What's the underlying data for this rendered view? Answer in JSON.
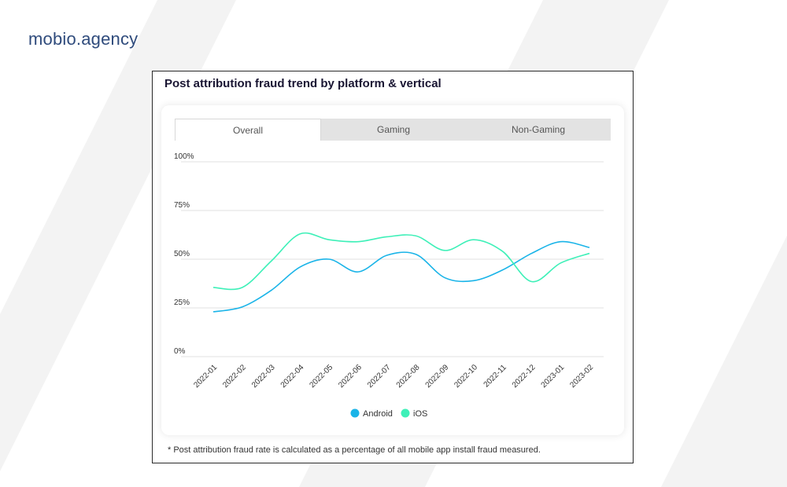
{
  "brand": {
    "name": "mobio.agency"
  },
  "card": {
    "title": "Post attribution fraud trend by platform & vertical",
    "footnote": "* Post attribution fraud rate is calculated as a percentage of all mobile app install fraud measured."
  },
  "tabs": [
    {
      "label": "Overall",
      "active": true
    },
    {
      "label": "Gaming",
      "active": false
    },
    {
      "label": "Non-Gaming",
      "active": false
    }
  ],
  "colors": {
    "brand": "#2f4b7c",
    "android": "#1ab4e8",
    "ios": "#3ef0b8",
    "gridline": "#e0e0e0",
    "stripe": "#f2f2f2"
  },
  "chart_data": {
    "type": "line",
    "title": "Post attribution fraud trend by platform & vertical",
    "x": [
      "2022-01",
      "2022-02",
      "2022-03",
      "2022-04",
      "2022-05",
      "2022-06",
      "2022-07",
      "2022-08",
      "2022-09",
      "2022-10",
      "2022-11",
      "2022-12",
      "2023-01",
      "2023-02"
    ],
    "yticks": [
      "100%",
      "75%",
      "50%",
      "25%",
      "0%"
    ],
    "ylim": [
      0,
      100
    ],
    "series": [
      {
        "name": "Android",
        "color": "#1ab4e8",
        "values": [
          23,
          25.5,
          34,
          46,
          50,
          43.5,
          52,
          52.5,
          40.5,
          39,
          44.5,
          53,
          59,
          56
        ]
      },
      {
        "name": "iOS",
        "color": "#3ef0b8",
        "values": [
          35.5,
          35.5,
          49,
          63,
          60,
          59,
          61.5,
          62,
          54.5,
          60,
          54,
          38.5,
          48,
          53
        ]
      }
    ],
    "legend": "bottom-center",
    "grid": true
  }
}
